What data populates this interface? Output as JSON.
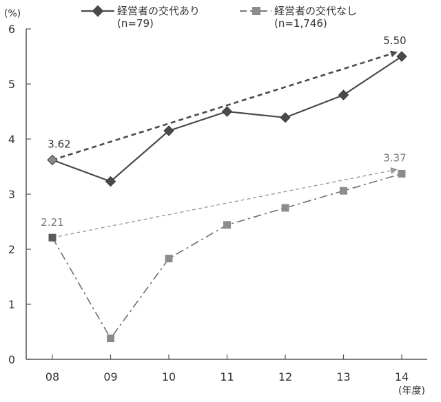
{
  "chart_data": {
    "type": "line",
    "title": "",
    "ylabel": "(%)",
    "xlabel": "(年度)",
    "categories": [
      "08",
      "09",
      "10",
      "11",
      "12",
      "13",
      "14"
    ],
    "ylim": [
      0,
      6
    ],
    "yticks": [
      0,
      1,
      2,
      3,
      4,
      5,
      6
    ],
    "grid": false,
    "legend_position": "top",
    "series": [
      {
        "name": "経営者の交代あり",
        "sample": "(n=79)",
        "values": [
          3.62,
          3.23,
          4.15,
          4.5,
          4.39,
          4.8,
          5.5
        ],
        "marker": "diamond",
        "line": "solid",
        "color": "#4a4a4a"
      },
      {
        "name": "経営者の交代なし",
        "sample": "(n=1,746)",
        "values": [
          2.21,
          0.38,
          1.83,
          2.44,
          2.75,
          3.06,
          3.37
        ],
        "marker": "square",
        "line": "dashed",
        "color": "#8c8c8c"
      }
    ],
    "annotations": [
      {
        "text": "3.62",
        "series": 0,
        "point": 0,
        "arrow_to_point": 6
      },
      {
        "text": "5.50",
        "series": 0,
        "point": 6
      },
      {
        "text": "2.21",
        "series": 1,
        "point": 0,
        "arrow_to_point": 6
      },
      {
        "text": "3.37",
        "series": 1,
        "point": 6
      }
    ]
  }
}
